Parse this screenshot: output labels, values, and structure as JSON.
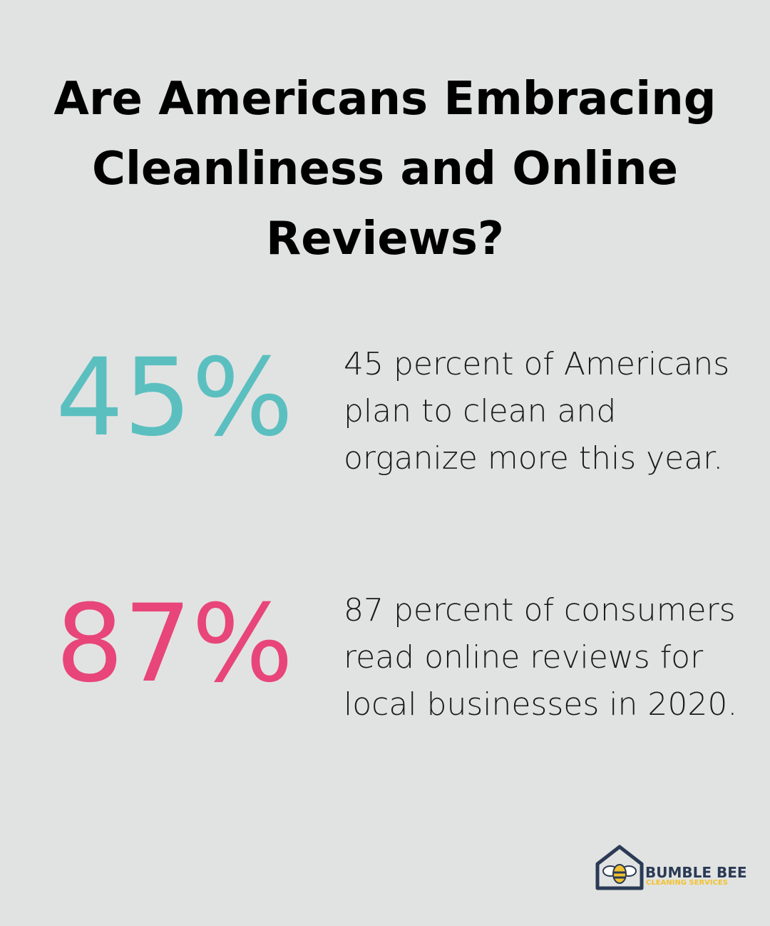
{
  "header": {
    "title": "Are Americans Embracing Cleanliness and Online Reviews?"
  },
  "stats": [
    {
      "value": "45%",
      "text": "45 percent of Americans plan to clean and organize more this year.",
      "color": "#5bbfc0"
    },
    {
      "value": "87%",
      "text": "87 percent of consumers read online reviews for local businesses in 2020.",
      "color": "#e8457a"
    }
  ],
  "logo": {
    "name": "BUMBLE BEE",
    "tagline": "CLEANING SERVICES"
  }
}
